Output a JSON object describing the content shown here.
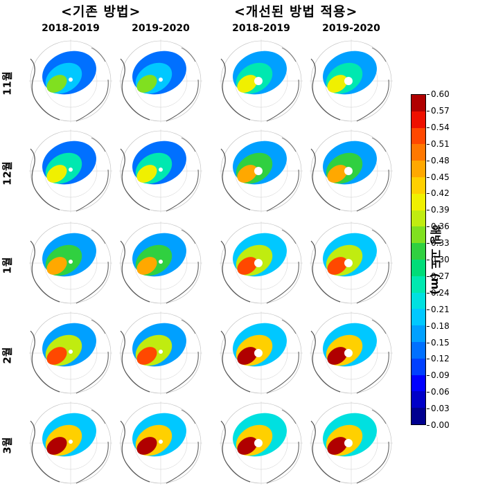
{
  "titles": {
    "left_group": "<기존 방법>",
    "right_group": "<개선된 방법 적용>"
  },
  "columns": [
    "2018-2019",
    "2019-2020",
    "2018-2019",
    "2019-2020"
  ],
  "rows": [
    "11월",
    "12월",
    "1월",
    "2월",
    "3월"
  ],
  "colorbar": {
    "label": "해빙 고도 (m)",
    "min": 0.0,
    "max": 0.6,
    "ticks": [
      "0.00",
      "0.03",
      "0.06",
      "0.09",
      "0.12",
      "0.15",
      "0.18",
      "0.21",
      "0.24",
      "0.27",
      "0.30",
      "0.33",
      "0.36",
      "0.39",
      "0.42",
      "0.45",
      "0.48",
      "0.51",
      "0.54",
      "0.57",
      "0.60"
    ],
    "colors": [
      "#00008f",
      "#0000c8",
      "#0000ff",
      "#0040ff",
      "#0070ff",
      "#00a0ff",
      "#00c8ff",
      "#00e0e0",
      "#00e8b0",
      "#00dc78",
      "#30d040",
      "#80e020",
      "#c0ec10",
      "#f0f000",
      "#ffd000",
      "#ffa800",
      "#ff7800",
      "#ff4800",
      "#ee1000",
      "#b00000"
    ]
  }
}
